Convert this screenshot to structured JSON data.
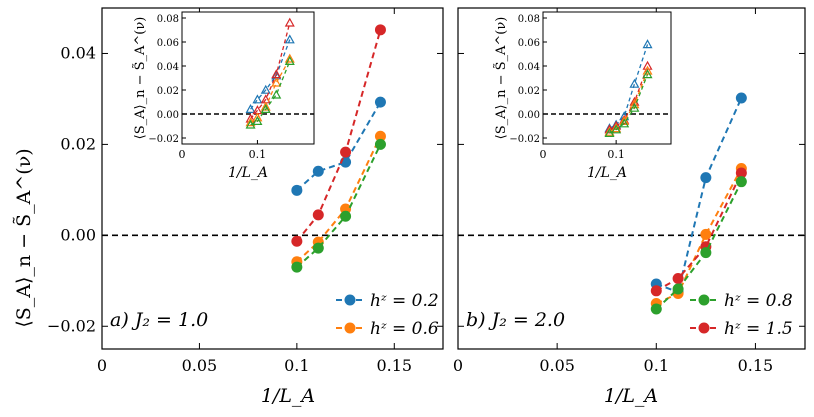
{
  "figure": {
    "ylabel": "⟨S_A⟩_n − S̃_A^(ν)",
    "xlabel": "1/L_A"
  },
  "chart_data": [
    {
      "type": "line",
      "panel": "a",
      "annotation": "a)  J₂ = 1.0",
      "xlabel": "1/L_A",
      "ylabel": "⟨S_A⟩_n − S̃_A^(ν)",
      "xlim": [
        0,
        0.175
      ],
      "ylim": [
        -0.025,
        0.05
      ],
      "xticks": [
        "0",
        "0.05",
        "0.1",
        "0.15"
      ],
      "yticks": [
        "−0.02",
        "0.00",
        "0.02",
        "0.04"
      ],
      "reference_line_y": 0,
      "legend_position": "lower-right",
      "series": [
        {
          "name": "h^z = 0.2",
          "color": "#1f77b4",
          "x": [
            0.1,
            0.111,
            0.125,
            0.1429
          ],
          "y": [
            0.0099,
            0.0141,
            0.0161,
            0.0293
          ],
          "in_legend": true
        },
        {
          "name": "h^z = 0.6",
          "color": "#ff7f0e",
          "x": [
            0.1,
            0.111,
            0.125,
            0.1429
          ],
          "y": [
            -0.0058,
            -0.0015,
            0.0058,
            0.0218
          ],
          "in_legend": true
        },
        {
          "name": "h^z = 1.5",
          "color": "#d62728",
          "x": [
            0.1,
            0.111,
            0.125,
            0.1429
          ],
          "y": [
            -0.0013,
            0.0045,
            0.0183,
            0.0452
          ],
          "in_legend": false
        },
        {
          "name": "h^z = 0.8",
          "color": "#2ca02c",
          "x": [
            0.1,
            0.111,
            0.125,
            0.1429
          ],
          "y": [
            -0.007,
            -0.0028,
            0.0042,
            0.02
          ],
          "in_legend": false
        }
      ],
      "inset": {
        "xlim": [
          0,
          0.175
        ],
        "ylim": [
          -0.025,
          0.085
        ],
        "xticks": [
          "0",
          "0.1"
        ],
        "yticks": [
          "−0.02",
          "0.00",
          "0.02",
          "0.04",
          "0.06",
          "0.08"
        ],
        "xlabel": "1/L_A",
        "ylabel": "⟨S_A⟩_n − S̃_A^(ν)",
        "reference_line_y": 0,
        "marker": "open-triangle",
        "series": [
          {
            "color": "#1f77b4",
            "x": [
              0.0909,
              0.1,
              0.111,
              0.125,
              0.1429
            ],
            "y": [
              0.004,
              0.012,
              0.02,
              0.032,
              0.062
            ]
          },
          {
            "color": "#d62728",
            "x": [
              0.0909,
              0.1,
              0.111,
              0.125,
              0.1429
            ],
            "y": [
              -0.004,
              0.003,
              0.012,
              0.033,
              0.076
            ]
          },
          {
            "color": "#ff7f0e",
            "x": [
              0.0909,
              0.1,
              0.111,
              0.125,
              0.1429
            ],
            "y": [
              -0.007,
              -0.003,
              0.006,
              0.026,
              0.046
            ]
          },
          {
            "color": "#2ca02c",
            "x": [
              0.0909,
              0.1,
              0.111,
              0.125,
              0.1429
            ],
            "y": [
              -0.009,
              -0.006,
              0.004,
              0.016,
              0.044
            ]
          }
        ]
      }
    },
    {
      "type": "line",
      "panel": "b",
      "annotation": "b)  J₂ = 2.0",
      "xlabel": "1/L_A",
      "xlim": [
        0,
        0.175
      ],
      "ylim": [
        -0.025,
        0.05
      ],
      "xticks": [
        "0",
        "0.05",
        "0.1",
        "0.15"
      ],
      "reference_line_y": 0,
      "legend_position": "lower-right",
      "series": [
        {
          "name": "h^z = 0.2",
          "color": "#1f77b4",
          "x": [
            0.1,
            0.111,
            0.125,
            0.1429
          ],
          "y": [
            -0.0107,
            -0.0125,
            0.0127,
            0.0302
          ],
          "in_legend": false
        },
        {
          "name": "h^z = 0.6",
          "color": "#ff7f0e",
          "x": [
            0.1,
            0.111,
            0.125,
            0.1429
          ],
          "y": [
            -0.015,
            -0.0128,
            0.0002,
            0.0147
          ],
          "in_legend": false
        },
        {
          "name": "h^z = 1.5",
          "color": "#d62728",
          "x": [
            0.1,
            0.111,
            0.125,
            0.1429
          ],
          "y": [
            -0.0122,
            -0.0095,
            -0.0025,
            0.0137
          ],
          "in_legend": true
        },
        {
          "name": "h^z = 0.8",
          "color": "#2ca02c",
          "x": [
            0.1,
            0.111,
            0.125,
            0.1429
          ],
          "y": [
            -0.0162,
            -0.0118,
            -0.0038,
            0.0118
          ],
          "in_legend": true
        }
      ],
      "legend_order": [
        "h^z = 0.8",
        "h^z = 1.5"
      ],
      "inset": {
        "xlim": [
          0,
          0.175
        ],
        "ylim": [
          -0.025,
          0.085
        ],
        "xticks": [
          "0",
          "0.1"
        ],
        "yticks": [
          "−0.02",
          "0.00",
          "0.02",
          "0.04",
          "0.06",
          "0.08"
        ],
        "xlabel": "1/L_A",
        "ylabel": "⟨S_A⟩_n − S̃_A^(ν)",
        "reference_line_y": 0,
        "marker": "open-triangle",
        "series": [
          {
            "color": "#1f77b4",
            "x": [
              0.0909,
              0.1,
              0.111,
              0.125,
              0.1429
            ],
            "y": [
              -0.012,
              -0.009,
              -0.002,
              0.025,
              0.058
            ]
          },
          {
            "color": "#d62728",
            "x": [
              0.0909,
              0.1,
              0.111,
              0.125,
              0.1429
            ],
            "y": [
              -0.013,
              -0.01,
              -0.005,
              0.01,
              0.04
            ]
          },
          {
            "color": "#ff7f0e",
            "x": [
              0.0909,
              0.1,
              0.111,
              0.125,
              0.1429
            ],
            "y": [
              -0.015,
              -0.012,
              -0.006,
              0.008,
              0.036
            ]
          },
          {
            "color": "#2ca02c",
            "x": [
              0.0909,
              0.1,
              0.111,
              0.125,
              0.1429
            ],
            "y": [
              -0.016,
              -0.013,
              -0.008,
              0.005,
              0.033
            ]
          }
        ]
      }
    }
  ]
}
